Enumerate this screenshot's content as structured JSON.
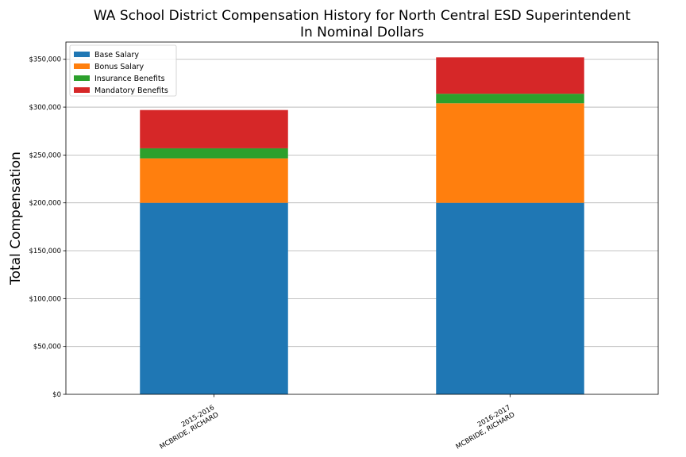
{
  "chart_data": {
    "type": "bar",
    "stacked": true,
    "title": "WA School District Compensation History for North Central ESD Superintendent",
    "subtitle": "In Nominal Dollars",
    "ylabel": "Total Compensation",
    "xlabel": "",
    "categories": [
      [
        "2015-2016",
        "MCBRIDE, RICHARD"
      ],
      [
        "2016-2017",
        "MCBRIDE, RICHARD"
      ]
    ],
    "series": [
      {
        "name": "Base Salary",
        "color": "#1f77b4",
        "values": [
          200000,
          200000
        ]
      },
      {
        "name": "Bonus Salary",
        "color": "#ff7f0e",
        "values": [
          46500,
          104000
        ]
      },
      {
        "name": "Insurance Benefits",
        "color": "#2ca02c",
        "values": [
          10500,
          10000
        ]
      },
      {
        "name": "Mandatory Benefits",
        "color": "#d62728",
        "values": [
          40000,
          38000
        ]
      }
    ],
    "ylim": [
      0,
      368000
    ],
    "yticks": [
      0,
      50000,
      100000,
      150000,
      200000,
      250000,
      300000,
      350000
    ],
    "ytick_labels": [
      "$0",
      "$50,000",
      "$100,000",
      "$150,000",
      "$200,000",
      "$250,000",
      "$300,000",
      "$350,000"
    ],
    "grid": "horizontal",
    "legend_position": "top-left"
  }
}
